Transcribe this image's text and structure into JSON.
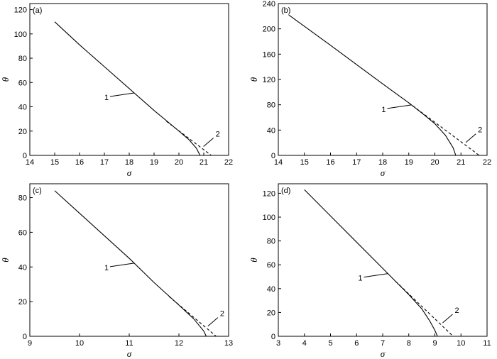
{
  "chart_data": [
    {
      "type": "line",
      "title": "(a)",
      "x_label": "σ",
      "y_label": "θ",
      "xlim": [
        14,
        22
      ],
      "ylim": [
        0,
        125
      ],
      "xticks": [
        14,
        15,
        16,
        17,
        18,
        19,
        20,
        21,
        22
      ],
      "yticks": [
        0,
        20,
        40,
        60,
        80,
        100,
        120
      ],
      "series": [
        {
          "name": "1",
          "color": "#000000",
          "linestyle": "solid",
          "x": [
            15,
            16,
            17,
            18,
            19,
            20,
            20.4,
            20.7,
            20.85
          ],
          "values": [
            110,
            91,
            73,
            55,
            37,
            20,
            13,
            6,
            0
          ]
        },
        {
          "name": "2",
          "color": "#000000",
          "linestyle": "dashed",
          "x": [
            19.5,
            21.3
          ],
          "values": [
            28,
            0
          ]
        }
      ]
    },
    {
      "type": "line",
      "title": "(b)",
      "x_label": "σ",
      "y_label": "θ",
      "xlim": [
        14,
        22
      ],
      "ylim": [
        0,
        240
      ],
      "xticks": [
        14,
        15,
        16,
        17,
        18,
        19,
        20,
        21,
        22
      ],
      "yticks": [
        0,
        40,
        80,
        120,
        160,
        200,
        240
      ],
      "series": [
        {
          "name": "1",
          "color": "#000000",
          "linestyle": "solid",
          "x": [
            14.4,
            16,
            18,
            19,
            19.5,
            20,
            20.4,
            20.7,
            20.8
          ],
          "values": [
            222,
            174,
            113,
            83,
            67,
            50,
            32,
            12,
            0
          ]
        },
        {
          "name": "2",
          "color": "#000000",
          "linestyle": "dashed",
          "x": [
            19,
            21.7
          ],
          "values": [
            83,
            0
          ]
        }
      ]
    },
    {
      "type": "line",
      "title": "(c)",
      "x_label": "σ",
      "y_label": "θ",
      "xlim": [
        9,
        13
      ],
      "ylim": [
        0,
        88
      ],
      "xticks": [
        9,
        10,
        11,
        12,
        13
      ],
      "yticks": [
        0,
        20,
        40,
        60,
        80
      ],
      "series": [
        {
          "name": "1",
          "color": "#000000",
          "linestyle": "solid",
          "x": [
            9.5,
            10,
            10.5,
            11,
            11.5,
            12,
            12.3,
            12.5,
            12.55
          ],
          "values": [
            84,
            71,
            58,
            45,
            31,
            18,
            10,
            3,
            0
          ]
        },
        {
          "name": "2",
          "color": "#000000",
          "linestyle": "dashed",
          "x": [
            11.8,
            12.75
          ],
          "values": [
            23,
            0
          ]
        }
      ]
    },
    {
      "type": "line",
      "title": "(d)",
      "x_label": "σ",
      "y_label": "θ",
      "xlim": [
        3,
        11
      ],
      "ylim": [
        0,
        128
      ],
      "xticks": [
        3,
        4,
        5,
        6,
        7,
        8,
        9,
        10,
        11
      ],
      "yticks": [
        0,
        20,
        40,
        60,
        80,
        100,
        120
      ],
      "series": [
        {
          "name": "1",
          "color": "#000000",
          "linestyle": "solid",
          "x": [
            4,
            5,
            6,
            7,
            8,
            8.5,
            8.8,
            9,
            9.1
          ],
          "values": [
            123,
            101,
            79,
            57,
            35,
            23,
            13,
            5,
            0
          ]
        },
        {
          "name": "2",
          "color": "#000000",
          "linestyle": "dashed",
          "x": [
            7.5,
            9.7
          ],
          "values": [
            46,
            0
          ]
        }
      ]
    }
  ]
}
